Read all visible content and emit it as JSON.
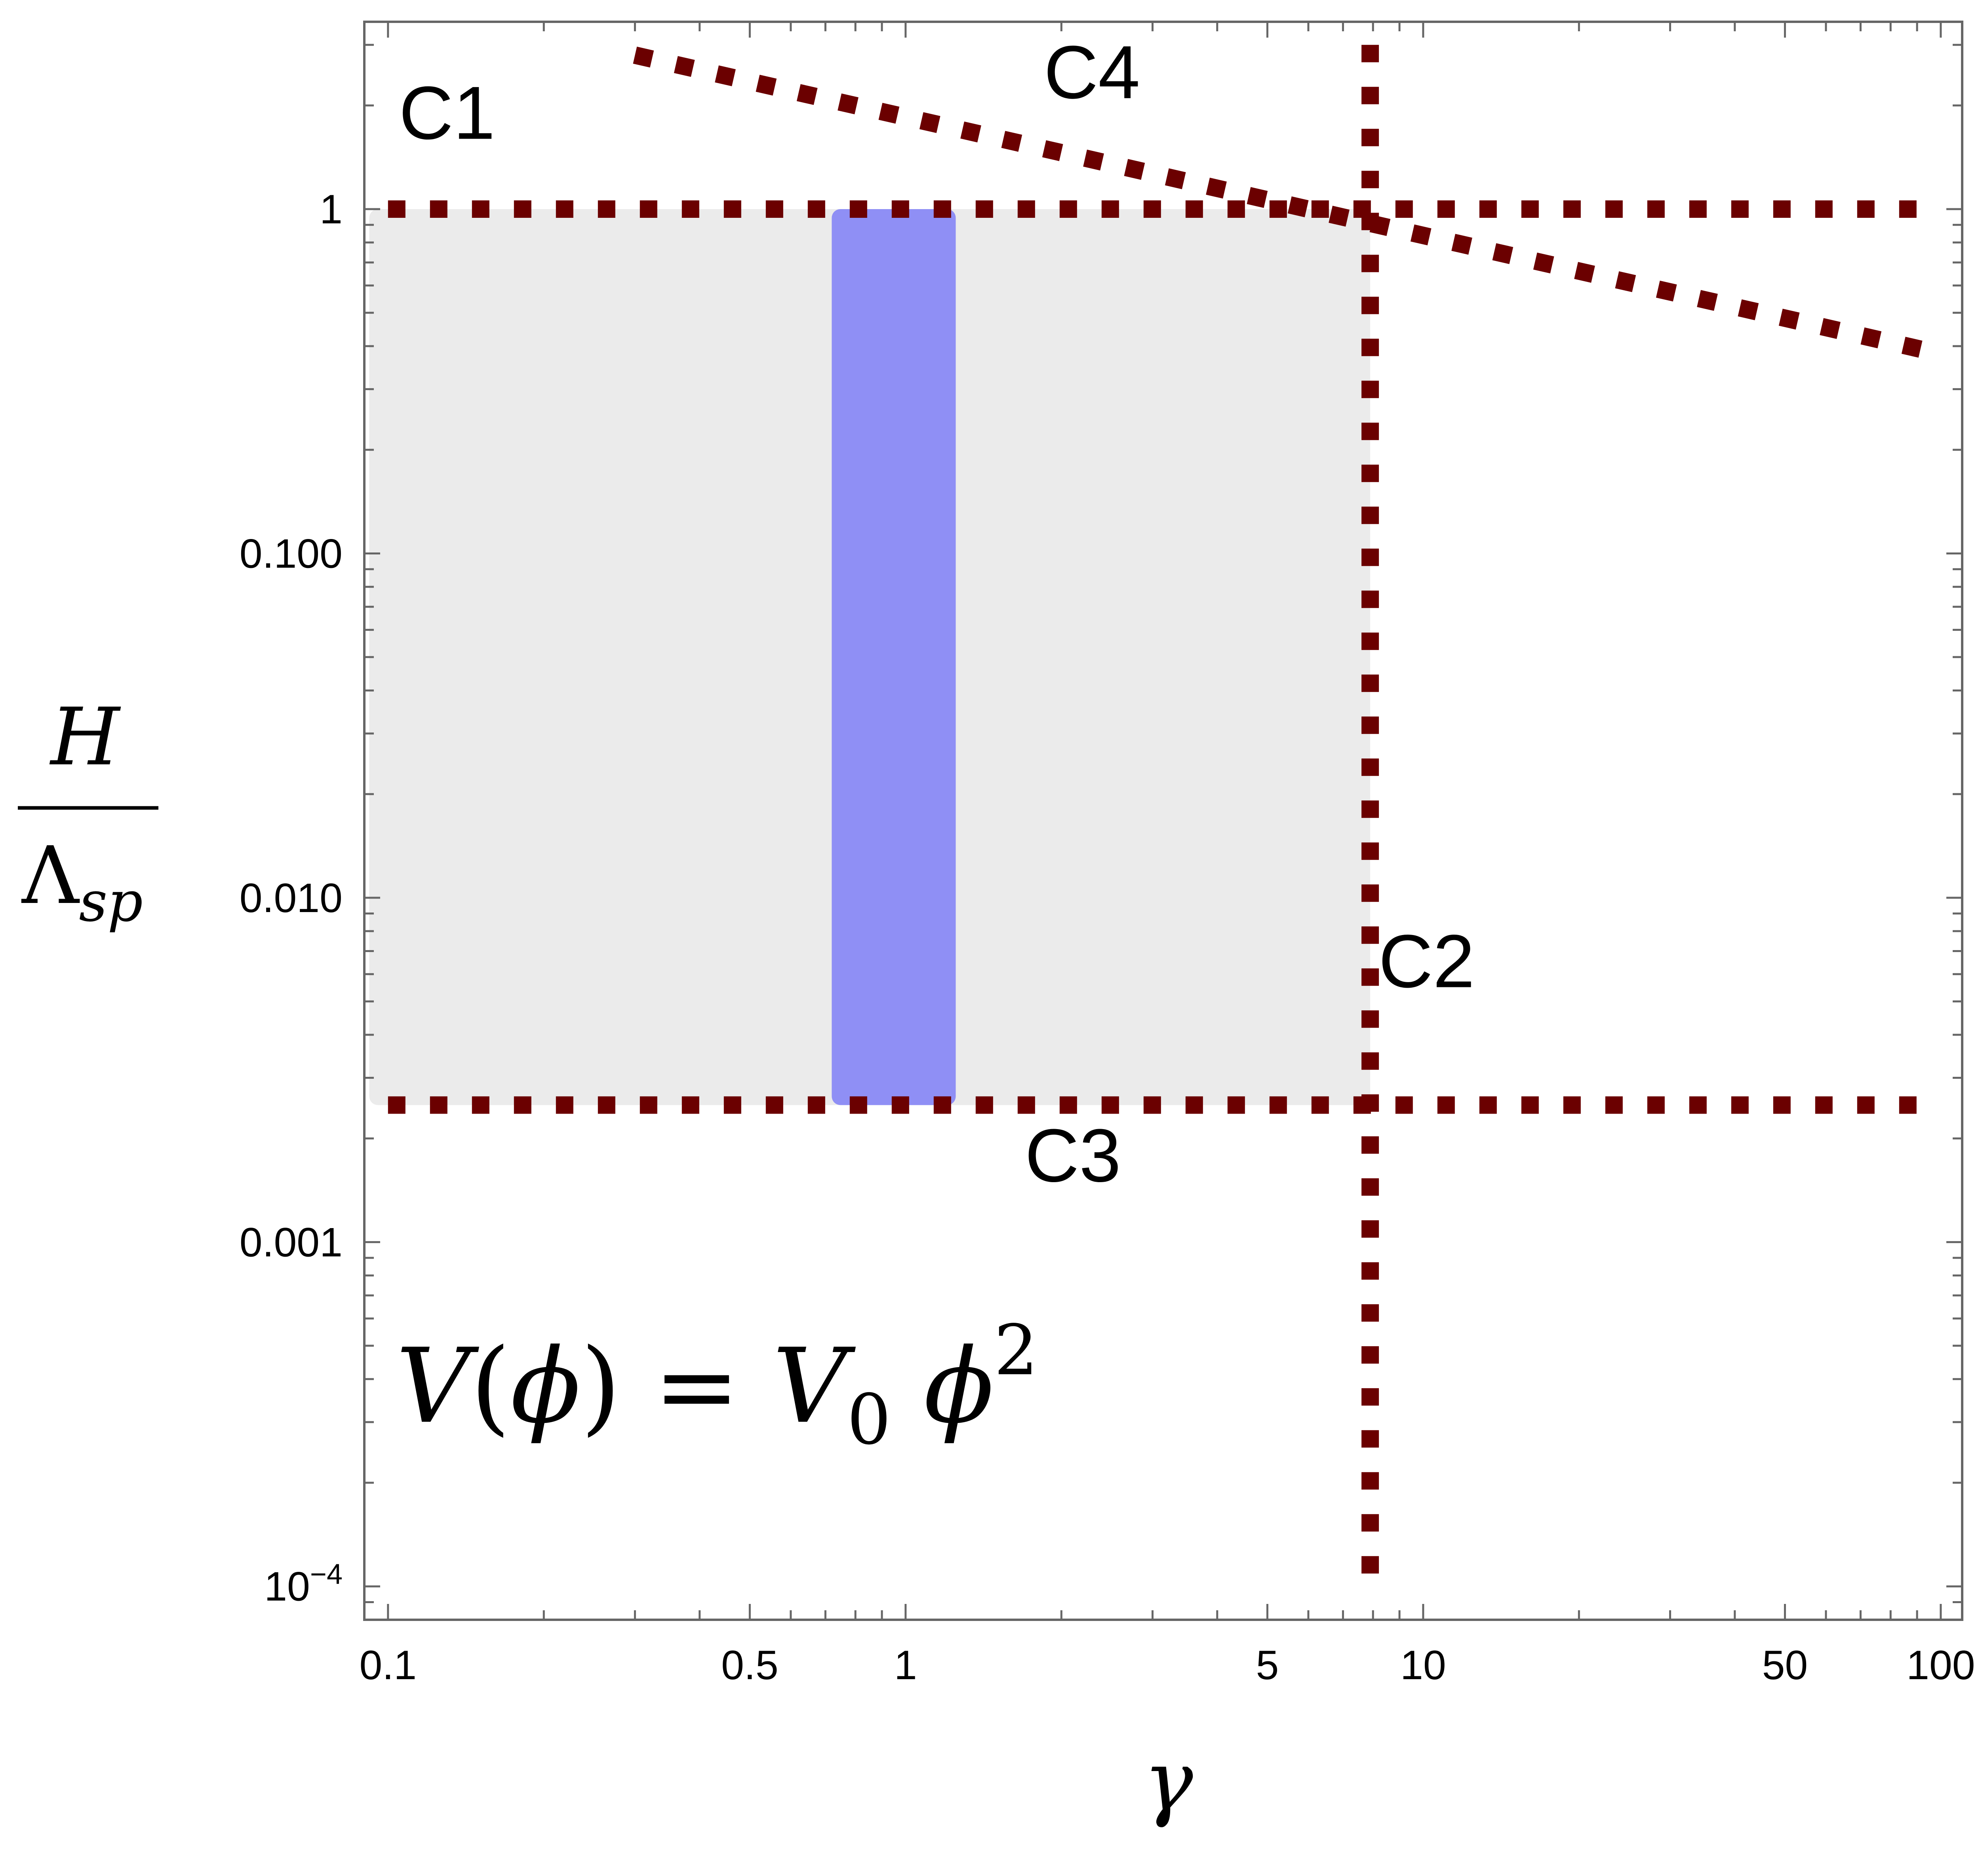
{
  "chart_data": {
    "type": "line",
    "title": "",
    "x_scale": "log",
    "y_scale": "log",
    "xlim": [
      0.09,
      110
    ],
    "ylim": [
      8e-05,
      3.5
    ],
    "x_ticks": [
      {
        "value": 0.1,
        "label": "0.1"
      },
      {
        "value": 0.5,
        "label": "0.5"
      },
      {
        "value": 1,
        "label": "1"
      },
      {
        "value": 5,
        "label": "5"
      },
      {
        "value": 10,
        "label": "10"
      },
      {
        "value": 50,
        "label": "50"
      },
      {
        "value": 100,
        "label": "100"
      }
    ],
    "y_ticks": [
      {
        "value": 1,
        "label": "1"
      },
      {
        "value": 0.1,
        "label": "0.100"
      },
      {
        "value": 0.01,
        "label": "0.010"
      },
      {
        "value": 0.001,
        "label": "0.001"
      },
      {
        "value": 0.0001,
        "label_base": "10",
        "label_exp": "−4"
      }
    ],
    "xlabel": "γ",
    "ylabel": {
      "numerator": "H",
      "denominator": "Λ",
      "denominator_sub": "sp"
    },
    "annotation": {
      "lhs": "V",
      "phi": "ϕ",
      "rhs_symbol": "V",
      "rhs_sub": "0",
      "exp": "2"
    },
    "constraints": [
      {
        "name": "C1",
        "kind": "horizontal",
        "y": 1,
        "x_range": [
          0.1,
          100
        ]
      },
      {
        "name": "C2",
        "kind": "vertical",
        "x": 7.9,
        "y_range": [
          0.0001,
          3.0
        ]
      },
      {
        "name": "C3",
        "kind": "horizontal",
        "y": 0.0025,
        "x_range": [
          0.1,
          100
        ]
      },
      {
        "name": "C4",
        "kind": "line",
        "points": [
          [
            0.3,
            2.8
          ],
          [
            100,
            0.38
          ]
        ]
      }
    ],
    "curve_labels": [
      {
        "text": "C1",
        "x": 0.105,
        "y": 1.6
      },
      {
        "text": "C4",
        "x": 1.85,
        "y": 2.1
      },
      {
        "text": "C2",
        "x": 8.2,
        "y": 0.0055
      },
      {
        "text": "C3",
        "x": 1.7,
        "y": 0.0015
      }
    ],
    "regions": [
      {
        "name": "allowed-region",
        "x_range": [
          0.092,
          7.9
        ],
        "y_range": [
          0.0025,
          1
        ],
        "color": "#ebebeb"
      },
      {
        "name": "highlighted-band",
        "x_range": [
          0.72,
          1.25
        ],
        "y_range": [
          0.0025,
          1
        ],
        "color": "#8f8ff5"
      }
    ],
    "colors": {
      "constraint_line": "#6b0000",
      "frame": "#666666"
    }
  }
}
